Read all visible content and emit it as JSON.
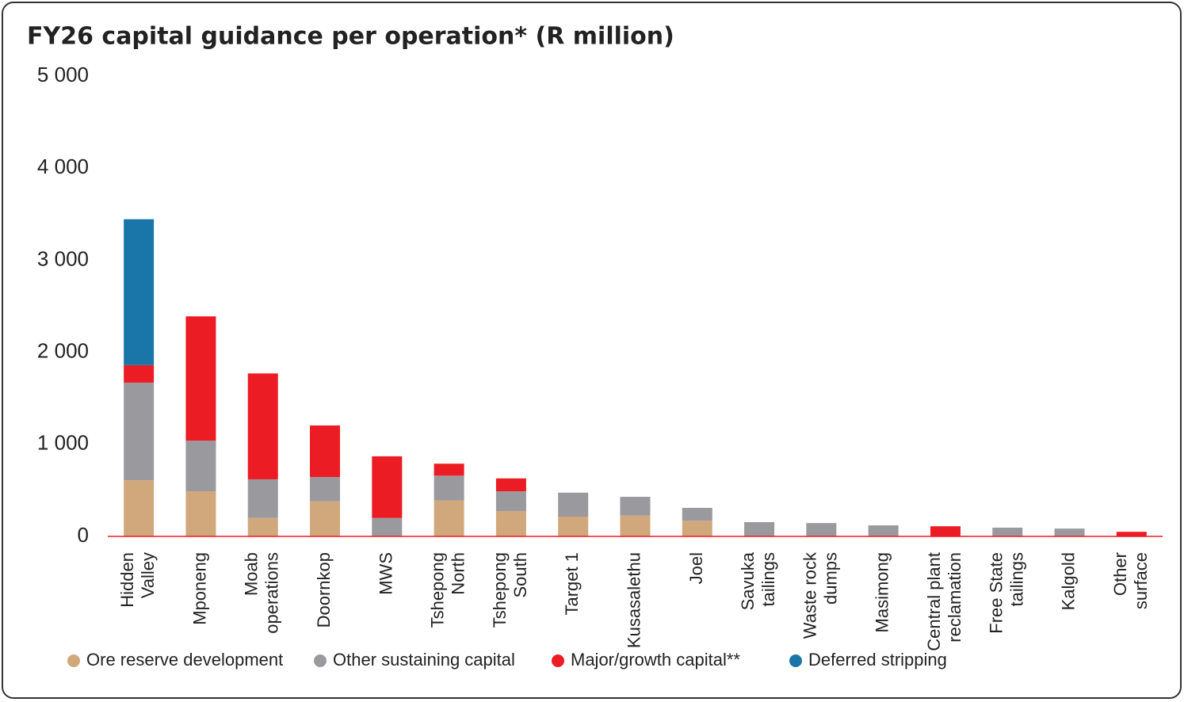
{
  "chart_data": {
    "type": "stacked-bar",
    "title": "FY26 capital guidance per operation* (R million)",
    "categories": [
      "Hidden\nValley",
      "Mponeng",
      "Moab\noperations",
      "Doornkop",
      "MWS",
      "Tshepong\nNorth",
      "Tshepong\nSouth",
      "Target 1",
      "Kusasalethu",
      "Joel",
      "Savuka\ntailings",
      "Waste rock\ndumps",
      "Masimong",
      "Central plant\nreclamation",
      "Free State\ntailings",
      "Kalgold",
      "Other\nsurface"
    ],
    "series": [
      {
        "name": "Ore reserve development",
        "color": "#d1a87c",
        "values": [
          610,
          490,
          200,
          380,
          0,
          390,
          275,
          215,
          225,
          170,
          0,
          0,
          0,
          0,
          0,
          0,
          0
        ]
      },
      {
        "name": "Other sustaining capital",
        "color": "#9a9a9e",
        "values": [
          1060,
          550,
          420,
          265,
          200,
          270,
          215,
          260,
          205,
          140,
          155,
          145,
          120,
          0,
          95,
          85,
          0
        ]
      },
      {
        "name": "Major/growth capital**",
        "color": "#ec1c24",
        "values": [
          190,
          1350,
          1150,
          560,
          670,
          130,
          140,
          0,
          0,
          0,
          0,
          0,
          0,
          110,
          0,
          0,
          50
        ]
      },
      {
        "name": "Deferred stripping",
        "color": "#1a75a8",
        "values": [
          1585,
          0,
          0,
          0,
          0,
          0,
          0,
          0,
          0,
          0,
          0,
          0,
          0,
          0,
          0,
          0,
          0
        ]
      }
    ],
    "ylim": [
      0,
      5000
    ],
    "yticks": [
      {
        "value": 0,
        "label": "0"
      },
      {
        "value": 1000,
        "label": "1 000"
      },
      {
        "value": 2000,
        "label": "2 000"
      },
      {
        "value": 3000,
        "label": "3 000"
      },
      {
        "value": 4000,
        "label": "4 000"
      },
      {
        "value": 5000,
        "label": "5 000"
      }
    ]
  }
}
